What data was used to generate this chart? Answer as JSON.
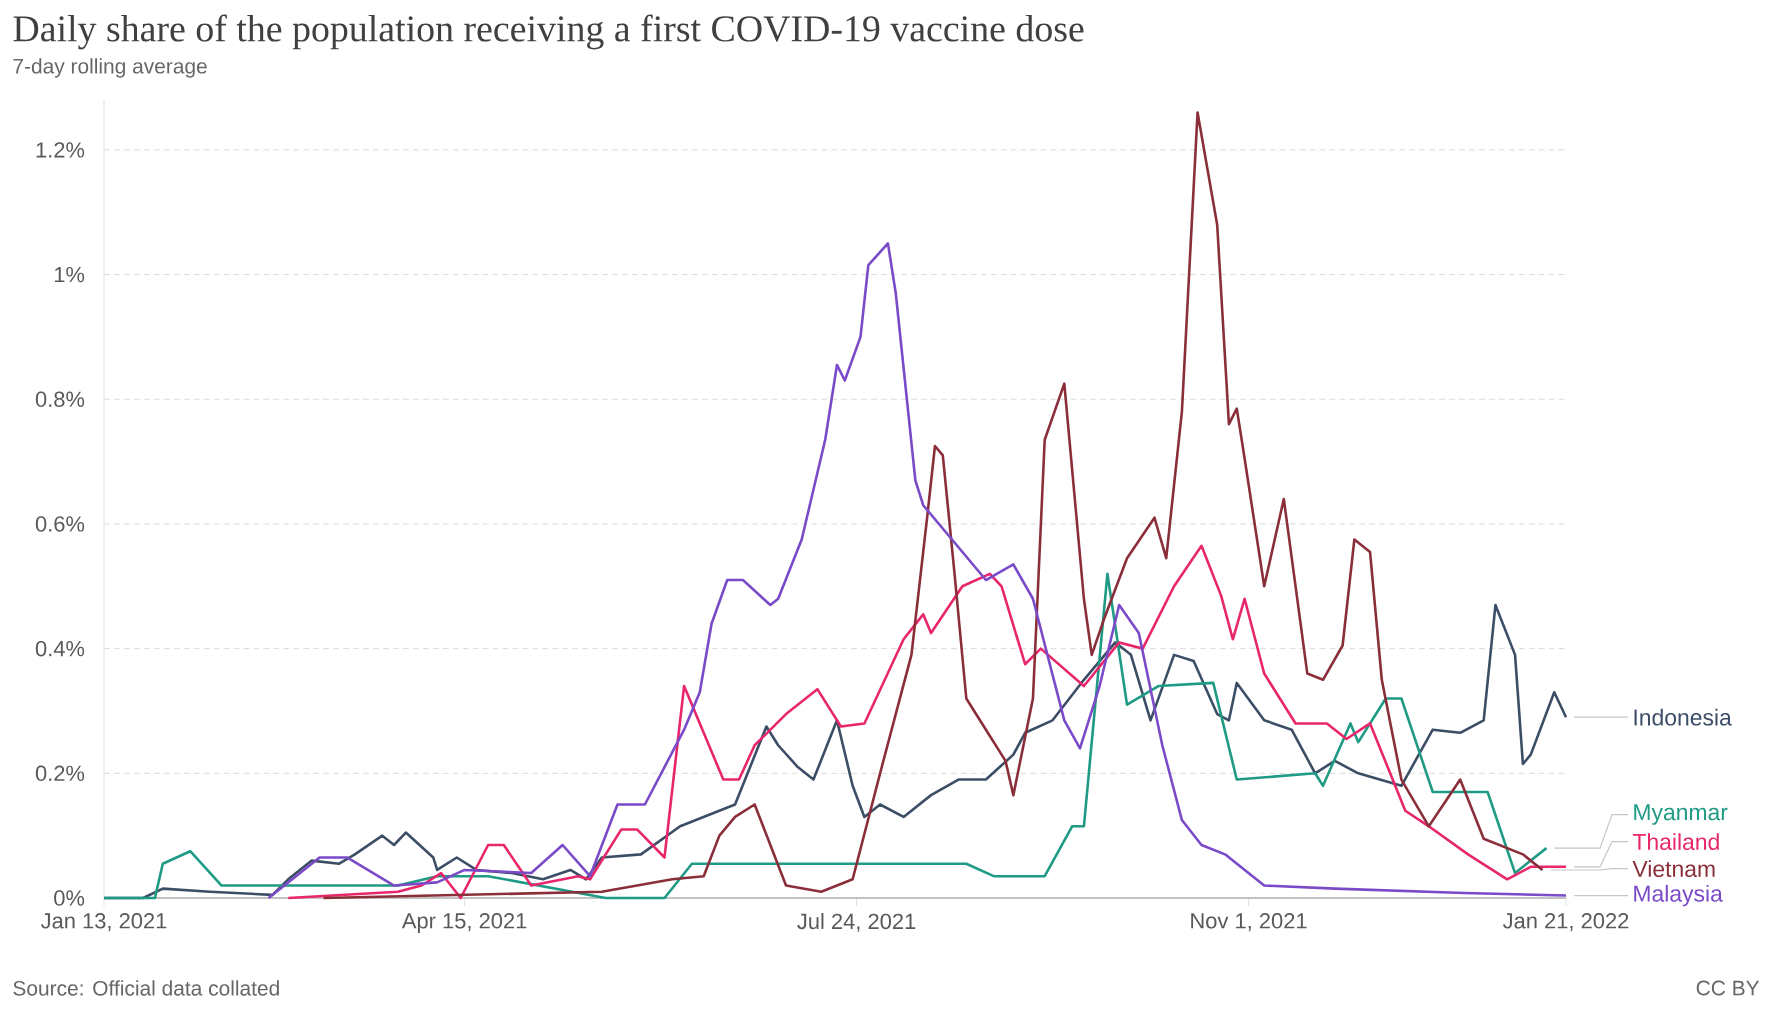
{
  "chart_data": {
    "type": "line",
    "title": "Daily share of the population receiving a first COVID-19 vaccine dose",
    "subtitle": "7-day rolling average",
    "annotations": [
      "Source: Official data collated",
      "CC BY"
    ],
    "xlim": [
      "2021-01-13",
      "2022-01-21"
    ],
    "xticks": [
      {
        "value": "2021-01-13",
        "label": "Jan 13, 2021"
      },
      {
        "value": "2021-04-15",
        "label": "Apr 15, 2021"
      },
      {
        "value": "2021-07-24",
        "label": "Jul 24, 2021"
      },
      {
        "value": "2021-11-01",
        "label": "Nov 1, 2021"
      },
      {
        "value": "2022-01-21",
        "label": "Jan 21, 2022"
      }
    ],
    "ylim": [
      0,
      1.28
    ],
    "yticks": [
      {
        "value": 0,
        "label": "0%"
      },
      {
        "value": 0.2,
        "label": "0.2%"
      },
      {
        "value": 0.4,
        "label": "0.4%"
      },
      {
        "value": 0.6,
        "label": "0.6%"
      },
      {
        "value": 0.8,
        "label": "0.8%"
      },
      {
        "value": 1,
        "label": "1%"
      },
      {
        "value": 1.2,
        "label": "1.2%"
      }
    ],
    "grid": "y",
    "series": [
      {
        "name": "Indonesia",
        "color": "#3c4e66",
        "x": [
          "2021-01-13",
          "2021-01-23",
          "2021-01-28",
          "2021-02-09",
          "2021-02-25",
          "2021-03-01",
          "2021-03-07",
          "2021-03-14",
          "2021-03-18",
          "2021-03-25",
          "2021-03-28",
          "2021-03-31",
          "2021-04-07",
          "2021-04-08",
          "2021-04-13",
          "2021-04-18",
          "2021-04-27",
          "2021-05-05",
          "2021-05-12",
          "2021-05-16",
          "2021-05-20",
          "2021-05-30",
          "2021-06-09",
          "2021-06-23",
          "2021-07-01",
          "2021-07-04",
          "2021-07-09",
          "2021-07-13",
          "2021-07-19",
          "2021-07-23",
          "2021-07-26",
          "2021-07-30",
          "2021-08-05",
          "2021-08-12",
          "2021-08-19",
          "2021-08-26",
          "2021-09-02",
          "2021-09-05",
          "2021-09-12",
          "2021-09-20",
          "2021-09-28",
          "2021-10-02",
          "2021-10-07",
          "2021-10-13",
          "2021-10-18",
          "2021-10-24",
          "2021-10-27",
          "2021-10-29",
          "2021-11-05",
          "2021-11-12",
          "2021-11-18",
          "2021-11-23",
          "2021-11-29",
          "2021-12-10",
          "2021-12-18",
          "2021-12-25",
          "2021-12-31",
          "2022-01-03",
          "2022-01-08",
          "2022-01-10",
          "2022-01-12",
          "2022-01-18",
          "2022-01-21"
        ],
        "values": [
          0,
          0,
          0.015,
          0.01,
          0.005,
          0.03,
          0.06,
          0.055,
          0.07,
          0.1,
          0.085,
          0.105,
          0.065,
          0.045,
          0.065,
          0.045,
          0.04,
          0.03,
          0.045,
          0.03,
          0.065,
          0.07,
          0.115,
          0.15,
          0.275,
          0.245,
          0.21,
          0.19,
          0.285,
          0.18,
          0.13,
          0.15,
          0.13,
          0.165,
          0.19,
          0.19,
          0.23,
          0.265,
          0.285,
          0.35,
          0.41,
          0.39,
          0.285,
          0.39,
          0.38,
          0.295,
          0.285,
          0.345,
          0.285,
          0.27,
          0.2,
          0.22,
          0.2,
          0.18,
          0.27,
          0.265,
          0.285,
          0.47,
          0.39,
          0.215,
          0.23,
          0.33,
          0.29
        ]
      },
      {
        "name": "Myanmar",
        "color": "#1f9a84",
        "x": [
          "2021-01-13",
          "2021-01-26",
          "2021-01-28",
          "2021-02-04",
          "2021-02-12",
          "2021-03-29",
          "2021-04-08",
          "2021-04-21",
          "2021-05-21",
          "2021-06-05",
          "2021-06-12",
          "2021-08-21",
          "2021-08-28",
          "2021-09-10",
          "2021-09-17",
          "2021-09-20",
          "2021-09-26",
          "2021-10-01",
          "2021-10-09",
          "2021-10-23",
          "2021-10-29",
          "2021-11-18",
          "2021-11-20",
          "2021-11-27",
          "2021-11-29",
          "2021-12-06",
          "2021-12-10",
          "2021-12-18",
          "2022-01-01",
          "2022-01-08",
          "2022-01-16"
        ],
        "values": [
          0,
          0,
          0.055,
          0.075,
          0.02,
          0.02,
          0.035,
          0.035,
          0,
          0,
          0.055,
          0.055,
          0.035,
          0.035,
          0.115,
          0.115,
          0.52,
          0.31,
          0.34,
          0.345,
          0.19,
          0.2,
          0.18,
          0.28,
          0.25,
          0.32,
          0.32,
          0.17,
          0.17,
          0.04,
          0.08
        ]
      },
      {
        "name": "Thailand",
        "color": "#e8266c",
        "x": [
          "2021-03-01",
          "2021-03-29",
          "2021-04-04",
          "2021-04-09",
          "2021-04-14",
          "2021-04-21",
          "2021-04-25",
          "2021-05-02",
          "2021-05-14",
          "2021-05-17",
          "2021-05-25",
          "2021-05-29",
          "2021-06-05",
          "2021-06-10",
          "2021-06-15",
          "2021-06-20",
          "2021-06-24",
          "2021-06-28",
          "2021-07-06",
          "2021-07-14",
          "2021-07-20",
          "2021-07-26",
          "2021-08-05",
          "2021-08-10",
          "2021-08-12",
          "2021-08-20",
          "2021-08-27",
          "2021-08-30",
          "2021-09-05",
          "2021-09-09",
          "2021-09-20",
          "2021-09-29",
          "2021-10-05",
          "2021-10-13",
          "2021-10-20",
          "2021-10-25",
          "2021-10-28",
          "2021-10-31",
          "2021-11-05",
          "2021-11-13",
          "2021-11-21",
          "2021-11-26",
          "2021-12-02",
          "2021-12-11",
          "2021-12-17",
          "2021-12-27",
          "2022-01-06",
          "2022-01-12",
          "2022-01-21"
        ],
        "values": [
          0,
          0.01,
          0.02,
          0.04,
          0,
          0.085,
          0.085,
          0.02,
          0.035,
          0.03,
          0.11,
          0.11,
          0.065,
          0.34,
          0.265,
          0.19,
          0.19,
          0.245,
          0.295,
          0.335,
          0.275,
          0.28,
          0.415,
          0.455,
          0.425,
          0.5,
          0.52,
          0.5,
          0.375,
          0.4,
          0.34,
          0.41,
          0.4,
          0.5,
          0.565,
          0.485,
          0.415,
          0.48,
          0.36,
          0.28,
          0.28,
          0.255,
          0.28,
          0.14,
          0.115,
          0.07,
          0.03,
          0.05,
          0.05
        ]
      },
      {
        "name": "Vietnam",
        "color": "#8a2f3a",
        "x": [
          "2021-03-10",
          "2021-05-20",
          "2021-06-07",
          "2021-06-15",
          "2021-06-19",
          "2021-06-23",
          "2021-06-28",
          "2021-07-06",
          "2021-07-15",
          "2021-07-23",
          "2021-07-30",
          "2021-08-07",
          "2021-08-11",
          "2021-08-13",
          "2021-08-15",
          "2021-08-18",
          "2021-08-21",
          "2021-08-24",
          "2021-08-31",
          "2021-09-02",
          "2021-09-07",
          "2021-09-10",
          "2021-09-15",
          "2021-09-20",
          "2021-09-22",
          "2021-09-25",
          "2021-10-01",
          "2021-10-08",
          "2021-10-11",
          "2021-10-15",
          "2021-10-19",
          "2021-10-24",
          "2021-10-27",
          "2021-10-29",
          "2021-10-31",
          "2021-11-05",
          "2021-11-10",
          "2021-11-16",
          "2021-11-20",
          "2021-11-25",
          "2021-11-28",
          "2021-12-02",
          "2021-12-05",
          "2021-12-10",
          "2021-12-17",
          "2021-12-25",
          "2021-12-31",
          "2022-01-10",
          "2022-01-15"
        ],
        "values": [
          0,
          0.01,
          0.03,
          0.035,
          0.1,
          0.13,
          0.15,
          0.02,
          0.01,
          0.03,
          0.2,
          0.39,
          0.61,
          0.725,
          0.71,
          0.52,
          0.32,
          0.29,
          0.22,
          0.165,
          0.32,
          0.735,
          0.825,
          0.48,
          0.39,
          0.445,
          0.545,
          0.61,
          0.545,
          0.78,
          1.26,
          1.08,
          0.76,
          0.785,
          0.705,
          0.5,
          0.64,
          0.36,
          0.35,
          0.405,
          0.575,
          0.555,
          0.35,
          0.19,
          0.115,
          0.19,
          0.095,
          0.07,
          0.045
        ]
      },
      {
        "name": "Malaysia",
        "color": "#7a4ac8",
        "x": [
          "2021-02-24",
          "2021-03-09",
          "2021-03-16",
          "2021-03-28",
          "2021-04-08",
          "2021-04-15",
          "2021-05-02",
          "2021-05-10",
          "2021-05-17",
          "2021-05-24",
          "2021-05-31",
          "2021-06-05",
          "2021-06-10",
          "2021-06-14",
          "2021-06-17",
          "2021-06-21",
          "2021-06-25",
          "2021-07-02",
          "2021-07-04",
          "2021-07-10",
          "2021-07-16",
          "2021-07-19",
          "2021-07-21",
          "2021-07-25",
          "2021-07-27",
          "2021-08-01",
          "2021-08-03",
          "2021-08-08",
          "2021-08-10",
          "2021-08-16",
          "2021-08-26",
          "2021-09-02",
          "2021-09-07",
          "2021-09-15",
          "2021-09-19",
          "2021-09-24",
          "2021-09-29",
          "2021-10-04",
          "2021-10-10",
          "2021-10-15",
          "2021-10-20",
          "2021-10-26",
          "2021-11-05",
          "2021-11-23",
          "2021-12-26",
          "2022-01-21"
        ],
        "values": [
          0,
          0.065,
          0.065,
          0.02,
          0.025,
          0.045,
          0.04,
          0.085,
          0.035,
          0.15,
          0.15,
          0.21,
          0.27,
          0.33,
          0.44,
          0.51,
          0.51,
          0.47,
          0.48,
          0.575,
          0.735,
          0.855,
          0.83,
          0.9,
          1.015,
          1.05,
          0.97,
          0.67,
          0.63,
          0.585,
          0.51,
          0.535,
          0.48,
          0.285,
          0.24,
          0.34,
          0.47,
          0.425,
          0.245,
          0.125,
          0.085,
          0.07,
          0.02,
          0.015,
          0.008,
          0.004
        ]
      }
    ]
  }
}
